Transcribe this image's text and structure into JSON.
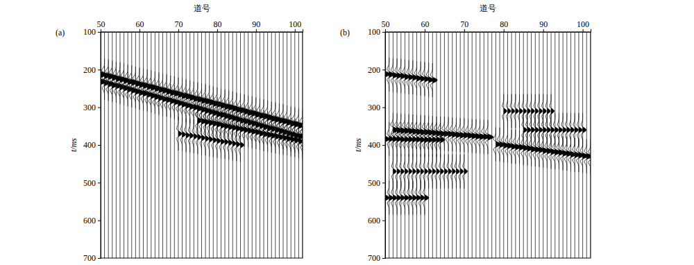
{
  "chart_data": [
    {
      "type": "wiggle",
      "title": "(a)",
      "xlabel": "道号",
      "ylabel": "t/ms",
      "xlim": [
        50,
        102
      ],
      "xticks": [
        50,
        60,
        70,
        80,
        90,
        100
      ],
      "ylim": [
        100,
        700
      ],
      "yticks": [
        100,
        200,
        300,
        400,
        500,
        600,
        700
      ],
      "traces": [
        50,
        51,
        52,
        53,
        54,
        55,
        56,
        57,
        58,
        59,
        60,
        61,
        62,
        63,
        64,
        65,
        66,
        67,
        68,
        69,
        70,
        71,
        72,
        73,
        74,
        75,
        76,
        77,
        78,
        79,
        80,
        81,
        82,
        83,
        84,
        85,
        86,
        87,
        88,
        89,
        90,
        91,
        92,
        93,
        94,
        95,
        96,
        97,
        98,
        99,
        100,
        101,
        102
      ],
      "events": [
        {
          "amplitude": 1.6,
          "x": [
            50,
            51,
            52,
            53,
            54,
            55,
            56,
            57,
            58,
            59,
            60,
            61,
            62,
            63,
            64,
            65,
            66,
            67,
            68,
            69,
            70,
            71,
            72,
            73,
            74,
            75,
            76,
            77,
            78,
            79,
            80,
            81,
            82,
            83,
            84,
            85,
            86,
            87,
            88,
            89,
            90,
            91,
            92,
            93,
            94,
            95,
            96,
            97,
            98,
            99,
            100,
            101,
            102
          ],
          "values": [
            213,
            216,
            218,
            221,
            224,
            226,
            229,
            232,
            234,
            237,
            240,
            242,
            245,
            247,
            250,
            253,
            255,
            258,
            261,
            263,
            266,
            269,
            271,
            274,
            277,
            279,
            282,
            284,
            287,
            290,
            292,
            295,
            298,
            300,
            303,
            306,
            308,
            311,
            314,
            316,
            319,
            322,
            324,
            327,
            330,
            332,
            335,
            337,
            340,
            343,
            345,
            348,
            351
          ]
        },
        {
          "amplitude": 1.3,
          "x": [
            50,
            51,
            52,
            53,
            54,
            55,
            56,
            57,
            58,
            59,
            60,
            61,
            62,
            63,
            64,
            65,
            66,
            67,
            68,
            69,
            70,
            71,
            72,
            73,
            74,
            75,
            76,
            77,
            78,
            79,
            80,
            81,
            82,
            83,
            84,
            85,
            86,
            87,
            88,
            89,
            90,
            91,
            92,
            93,
            94,
            95,
            96,
            97,
            98,
            99,
            100,
            101,
            102
          ],
          "values": [
            232,
            235,
            238,
            241,
            243,
            246,
            249,
            252,
            255,
            258,
            261,
            263,
            266,
            269,
            272,
            275,
            278,
            280,
            283,
            286,
            289,
            292,
            295,
            298,
            300,
            303,
            306,
            309,
            312,
            315,
            318,
            320,
            323,
            326,
            329,
            332,
            335,
            337,
            340,
            343,
            346,
            349,
            352,
            355,
            357,
            360,
            363,
            366,
            369,
            372,
            375,
            377,
            380
          ]
        },
        {
          "amplitude": 1.2,
          "x": [
            75,
            76,
            77,
            78,
            79,
            80,
            81,
            82,
            83,
            84,
            85,
            86,
            87,
            88,
            89,
            90,
            91,
            92,
            93,
            94,
            95,
            96,
            97,
            98,
            99,
            100,
            101,
            102
          ],
          "values": [
            335,
            337,
            339,
            341,
            343,
            345,
            348,
            350,
            352,
            354,
            356,
            358,
            360,
            362,
            364,
            366,
            369,
            371,
            373,
            375,
            377,
            379,
            381,
            383,
            385,
            387,
            390,
            392
          ]
        },
        {
          "amplitude": 0.9,
          "x": [
            70,
            71,
            72,
            73,
            74,
            75,
            76,
            77,
            78,
            79,
            80,
            81,
            82,
            83,
            84,
            85,
            86
          ],
          "values": [
            370,
            372,
            374,
            375,
            377,
            379,
            381,
            383,
            385,
            387,
            389,
            391,
            392,
            394,
            396,
            398,
            400
          ]
        }
      ]
    },
    {
      "type": "wiggle",
      "title": "(b)",
      "xlabel": "道号",
      "ylabel": "t/ms",
      "xlim": [
        50,
        102
      ],
      "xticks": [
        50,
        60,
        70,
        80,
        90,
        100
      ],
      "ylim": [
        100,
        700
      ],
      "yticks": [
        100,
        200,
        300,
        400,
        500,
        600,
        700
      ],
      "traces": [
        50,
        51,
        52,
        53,
        54,
        55,
        56,
        57,
        58,
        59,
        60,
        61,
        62,
        63,
        64,
        65,
        66,
        67,
        68,
        69,
        70,
        71,
        72,
        73,
        74,
        75,
        76,
        77,
        78,
        79,
        80,
        81,
        82,
        83,
        84,
        85,
        86,
        87,
        88,
        89,
        90,
        91,
        92,
        93,
        94,
        95,
        96,
        97,
        98,
        99,
        100,
        101,
        102
      ],
      "events": [
        {
          "amplitude": 1.2,
          "x": [
            50,
            51,
            52,
            53,
            54,
            55,
            56,
            57,
            58,
            59,
            60,
            61,
            62
          ],
          "values": [
            212,
            213,
            215,
            216,
            217,
            219,
            220,
            221,
            223,
            224,
            225,
            227,
            228
          ]
        },
        {
          "amplitude": 1.4,
          "x": [
            52,
            53,
            54,
            55,
            56,
            57,
            58,
            59,
            60,
            61,
            62,
            63,
            64,
            65,
            66,
            67,
            68,
            69,
            70,
            71,
            72,
            73,
            74,
            75,
            76
          ],
          "values": [
            360,
            361,
            362,
            362,
            363,
            364,
            365,
            366,
            366,
            367,
            368,
            369,
            370,
            370,
            371,
            372,
            373,
            374,
            374,
            375,
            376,
            377,
            378,
            378,
            379
          ]
        },
        {
          "amplitude": 1.3,
          "x": [
            78,
            79,
            80,
            81,
            82,
            83,
            84,
            85,
            86,
            87,
            88,
            89,
            90,
            91,
            92,
            93,
            94,
            95,
            96,
            97,
            98,
            99,
            100,
            101,
            102
          ],
          "values": [
            398,
            399,
            401,
            402,
            404,
            405,
            406,
            408,
            409,
            411,
            412,
            413,
            415,
            416,
            418,
            419,
            420,
            422,
            423,
            425,
            426,
            427,
            429,
            430,
            432
          ]
        },
        {
          "amplitude": 1.1,
          "x": [
            50,
            51,
            52,
            53,
            54,
            55,
            56,
            57,
            58,
            59,
            60,
            61,
            62,
            63,
            64
          ],
          "values": [
            384,
            384,
            384,
            384,
            385,
            385,
            385,
            385,
            385,
            386,
            386,
            386,
            386,
            386,
            386
          ]
        },
        {
          "amplitude": 1.0,
          "x": [
            50,
            51,
            52,
            53,
            54,
            55,
            56,
            57,
            58,
            59,
            60
          ],
          "values": [
            540,
            540,
            540,
            540,
            540,
            540,
            540,
            540,
            540,
            540,
            540
          ]
        },
        {
          "amplitude": 0.8,
          "x": [
            80,
            81,
            82,
            83,
            84,
            85,
            86,
            87,
            88,
            89,
            90,
            91,
            92
          ],
          "values": [
            310,
            310,
            310,
            310,
            310,
            310,
            310,
            310,
            310,
            310,
            310,
            310,
            310
          ]
        },
        {
          "amplitude": 0.8,
          "x": [
            52,
            53,
            54,
            55,
            56,
            57,
            58,
            59,
            60,
            61,
            62,
            63,
            64,
            65,
            66,
            67,
            68,
            69,
            70
          ],
          "values": [
            470,
            470,
            470,
            470,
            470,
            470,
            470,
            470,
            470,
            470,
            470,
            470,
            470,
            470,
            470,
            470,
            470,
            470,
            470
          ]
        },
        {
          "amplitude": 0.9,
          "x": [
            85,
            86,
            87,
            88,
            89,
            90,
            91,
            92,
            93,
            94,
            95,
            96,
            97,
            98,
            99,
            100
          ],
          "values": [
            360,
            360,
            360,
            360,
            360,
            360,
            360,
            360,
            360,
            360,
            360,
            360,
            360,
            360,
            360,
            360
          ]
        }
      ]
    }
  ]
}
